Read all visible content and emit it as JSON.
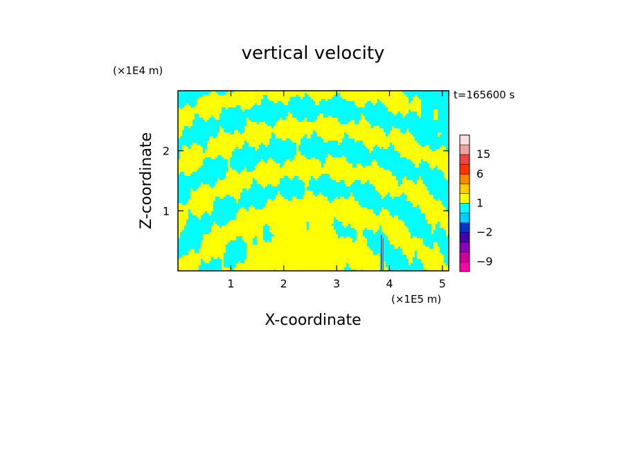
{
  "chart_data": {
    "type": "heatmap",
    "title": "vertical velocity",
    "xlabel": "X-coordinate",
    "ylabel": "Z-coordinate",
    "x_units": "(×1E5 m)",
    "y_units": "(×1E4 m)",
    "time_label": "t=165600 s",
    "xlim": [
      0,
      5.12
    ],
    "ylim": [
      0,
      3.0
    ],
    "x_ticks": [
      1,
      2,
      3,
      4,
      5
    ],
    "y_ticks": [
      1,
      2
    ],
    "x_tick_labels": [
      "1",
      "2",
      "3",
      "4",
      "5"
    ],
    "y_tick_labels": [
      "1",
      "2"
    ],
    "colorbar": {
      "levels": [
        -12,
        -9,
        -6,
        -4,
        -2,
        -1,
        0,
        1,
        2,
        4,
        6,
        10,
        15,
        20,
        25
      ],
      "colors": [
        "#ff00aa",
        "#cc0099",
        "#8800bb",
        "#4400aa",
        "#0033cc",
        "#00ccff",
        "#00ffff",
        "#ffff00",
        "#ffcc00",
        "#ff8800",
        "#ff3300",
        "#ee4444",
        "#f3a0a0",
        "#fbe0e0"
      ],
      "tick_labels": [
        {
          "label": "15",
          "value": 15
        },
        {
          "label": "6",
          "value": 6
        },
        {
          "label": "1",
          "value": 1
        },
        {
          "label": "−2",
          "value": -2
        },
        {
          "label": "−9",
          "value": -9
        }
      ]
    },
    "field_colors": {
      "updraft": "#ffff00",
      "downdraft": "#00ffff"
    },
    "dominant_field": "alternating positive (yellow) / negative (cyan) wave bands, large positive region centered near x=2.5, a narrow strong core near x=3.85"
  }
}
